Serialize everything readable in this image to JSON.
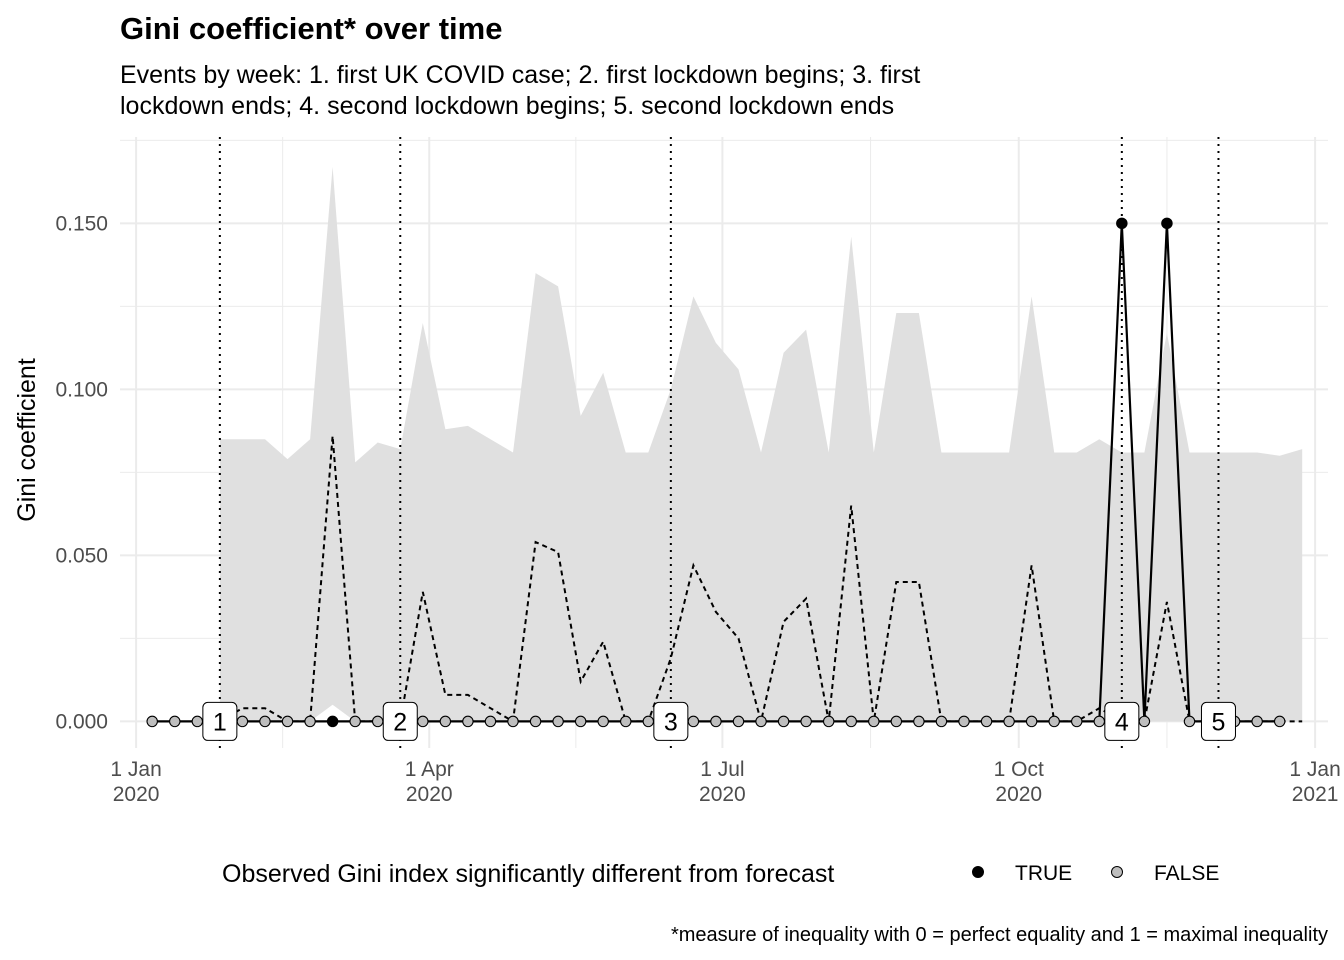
{
  "chart_data": {
    "type": "line",
    "title": "Gini coefficient* over time",
    "subtitle_lines": [
      "Events by week: 1. first UK COVID case; 2. first lockdown begins; 3. first",
      "lockdown ends; 4. second lockdown begins; 5. second lockdown ends"
    ],
    "ylabel": "Gini coefficient",
    "xlabel": "",
    "caption": "*measure of inequality with 0 = perfect equality and 1 = maximal inequality",
    "ylim": [
      -0.008,
      0.176
    ],
    "xlim": [
      "2019-12-27",
      "2021-01-05"
    ],
    "y_ticks": [
      0.0,
      0.05,
      0.1,
      0.15
    ],
    "y_tick_labels": [
      "0.000",
      "0.050",
      "0.100",
      "0.150"
    ],
    "x_ticks": [
      "2020-01-01",
      "2020-04-01",
      "2020-07-01",
      "2020-10-01",
      "2021-01-01"
    ],
    "x_tick_labels": [
      {
        "day": "1 Jan",
        "year": "2020"
      },
      {
        "day": "1 Apr",
        "year": "2020"
      },
      {
        "day": "1 Jul",
        "year": "2020"
      },
      {
        "day": "1 Oct",
        "year": "2020"
      },
      {
        "day": "1 Jan",
        "year": "2021"
      }
    ],
    "grid": true,
    "legend": {
      "title": "Observed Gini index significantly different from forecast",
      "position": "bottom",
      "entries": [
        {
          "label": "TRUE",
          "color": "#000000"
        },
        {
          "label": "FALSE",
          "color": "#bebebe"
        }
      ]
    },
    "colors": {
      "ribbon": "#e0e0e0",
      "grid": "#ebebeb",
      "line": "#000000",
      "point_true": "#000000",
      "point_false": "#bebebe"
    },
    "events": [
      {
        "label": "1",
        "date": "2020-01-27"
      },
      {
        "label": "2",
        "date": "2020-03-23"
      },
      {
        "label": "3",
        "date": "2020-06-15"
      },
      {
        "label": "4",
        "date": "2020-11-02"
      },
      {
        "label": "5",
        "date": "2020-12-02"
      }
    ],
    "observed": [
      {
        "date": "2020-01-06",
        "y": 0.0,
        "significant": false
      },
      {
        "date": "2020-01-13",
        "y": 0.0,
        "significant": false
      },
      {
        "date": "2020-01-20",
        "y": 0.0,
        "significant": false
      },
      {
        "date": "2020-01-27",
        "y": 0.0,
        "significant": false
      },
      {
        "date": "2020-02-03",
        "y": 0.0,
        "significant": false
      },
      {
        "date": "2020-02-10",
        "y": 0.0,
        "significant": false
      },
      {
        "date": "2020-02-17",
        "y": 0.0,
        "significant": false
      },
      {
        "date": "2020-02-24",
        "y": 0.0,
        "significant": false
      },
      {
        "date": "2020-03-02",
        "y": 0.0,
        "significant": true
      },
      {
        "date": "2020-03-09",
        "y": 0.0,
        "significant": false
      },
      {
        "date": "2020-03-16",
        "y": 0.0,
        "significant": false
      },
      {
        "date": "2020-03-23",
        "y": 0.0,
        "significant": false
      },
      {
        "date": "2020-03-30",
        "y": 0.0,
        "significant": false
      },
      {
        "date": "2020-04-06",
        "y": 0.0,
        "significant": false
      },
      {
        "date": "2020-04-13",
        "y": 0.0,
        "significant": false
      },
      {
        "date": "2020-04-20",
        "y": 0.0,
        "significant": false
      },
      {
        "date": "2020-04-27",
        "y": 0.0,
        "significant": false
      },
      {
        "date": "2020-05-04",
        "y": 0.0,
        "significant": false
      },
      {
        "date": "2020-05-11",
        "y": 0.0,
        "significant": false
      },
      {
        "date": "2020-05-18",
        "y": 0.0,
        "significant": false
      },
      {
        "date": "2020-05-25",
        "y": 0.0,
        "significant": false
      },
      {
        "date": "2020-06-01",
        "y": 0.0,
        "significant": false
      },
      {
        "date": "2020-06-08",
        "y": 0.0,
        "significant": false
      },
      {
        "date": "2020-06-15",
        "y": 0.0,
        "significant": false
      },
      {
        "date": "2020-06-22",
        "y": 0.0,
        "significant": false
      },
      {
        "date": "2020-06-29",
        "y": 0.0,
        "significant": false
      },
      {
        "date": "2020-07-06",
        "y": 0.0,
        "significant": false
      },
      {
        "date": "2020-07-13",
        "y": 0.0,
        "significant": false
      },
      {
        "date": "2020-07-20",
        "y": 0.0,
        "significant": false
      },
      {
        "date": "2020-07-27",
        "y": 0.0,
        "significant": false
      },
      {
        "date": "2020-08-03",
        "y": 0.0,
        "significant": false
      },
      {
        "date": "2020-08-10",
        "y": 0.0,
        "significant": false
      },
      {
        "date": "2020-08-17",
        "y": 0.0,
        "significant": false
      },
      {
        "date": "2020-08-24",
        "y": 0.0,
        "significant": false
      },
      {
        "date": "2020-08-31",
        "y": 0.0,
        "significant": false
      },
      {
        "date": "2020-09-07",
        "y": 0.0,
        "significant": false
      },
      {
        "date": "2020-09-14",
        "y": 0.0,
        "significant": false
      },
      {
        "date": "2020-09-21",
        "y": 0.0,
        "significant": false
      },
      {
        "date": "2020-09-28",
        "y": 0.0,
        "significant": false
      },
      {
        "date": "2020-10-05",
        "y": 0.0,
        "significant": false
      },
      {
        "date": "2020-10-12",
        "y": 0.0,
        "significant": false
      },
      {
        "date": "2020-10-19",
        "y": 0.0,
        "significant": false
      },
      {
        "date": "2020-10-26",
        "y": 0.0,
        "significant": false
      },
      {
        "date": "2020-11-02",
        "y": 0.15,
        "significant": true
      },
      {
        "date": "2020-11-09",
        "y": 0.0,
        "significant": false
      },
      {
        "date": "2020-11-16",
        "y": 0.15,
        "significant": true
      },
      {
        "date": "2020-11-23",
        "y": 0.0,
        "significant": false
      },
      {
        "date": "2020-11-30",
        "y": 0.0,
        "significant": false
      },
      {
        "date": "2020-12-07",
        "y": 0.0,
        "significant": false
      },
      {
        "date": "2020-12-14",
        "y": 0.0,
        "significant": false
      },
      {
        "date": "2020-12-21",
        "y": 0.0,
        "significant": false
      }
    ],
    "forecast": [
      {
        "date": "2020-01-27",
        "y": 0.0,
        "lower": 0.0,
        "upper": 0.085
      },
      {
        "date": "2020-02-03",
        "y": 0.004,
        "lower": 0.0,
        "upper": 0.085
      },
      {
        "date": "2020-02-10",
        "y": 0.004,
        "lower": 0.0,
        "upper": 0.085
      },
      {
        "date": "2020-02-17",
        "y": 0.0,
        "lower": 0.0,
        "upper": 0.079
      },
      {
        "date": "2020-02-24",
        "y": 0.0,
        "lower": 0.0,
        "upper": 0.085
      },
      {
        "date": "2020-03-02",
        "y": 0.086,
        "lower": 0.005,
        "upper": 0.167
      },
      {
        "date": "2020-03-09",
        "y": 0.0,
        "lower": 0.0,
        "upper": 0.078
      },
      {
        "date": "2020-03-16",
        "y": 0.0,
        "lower": 0.0,
        "upper": 0.084
      },
      {
        "date": "2020-03-23",
        "y": 0.0,
        "lower": 0.0,
        "upper": 0.082
      },
      {
        "date": "2020-03-30",
        "y": 0.039,
        "lower": 0.0,
        "upper": 0.12
      },
      {
        "date": "2020-04-06",
        "y": 0.008,
        "lower": 0.0,
        "upper": 0.088
      },
      {
        "date": "2020-04-13",
        "y": 0.008,
        "lower": 0.0,
        "upper": 0.089
      },
      {
        "date": "2020-04-20",
        "y": 0.004,
        "lower": 0.0,
        "upper": 0.085
      },
      {
        "date": "2020-04-27",
        "y": 0.0,
        "lower": 0.0,
        "upper": 0.081
      },
      {
        "date": "2020-05-04",
        "y": 0.054,
        "lower": 0.0,
        "upper": 0.135
      },
      {
        "date": "2020-05-11",
        "y": 0.051,
        "lower": 0.0,
        "upper": 0.131
      },
      {
        "date": "2020-05-18",
        "y": 0.012,
        "lower": 0.0,
        "upper": 0.092
      },
      {
        "date": "2020-05-25",
        "y": 0.024,
        "lower": 0.0,
        "upper": 0.105
      },
      {
        "date": "2020-06-01",
        "y": 0.0,
        "lower": 0.0,
        "upper": 0.081
      },
      {
        "date": "2020-06-08",
        "y": 0.0,
        "lower": 0.0,
        "upper": 0.081
      },
      {
        "date": "2020-06-15",
        "y": 0.019,
        "lower": 0.0,
        "upper": 0.1
      },
      {
        "date": "2020-06-22",
        "y": 0.047,
        "lower": 0.0,
        "upper": 0.128
      },
      {
        "date": "2020-06-29",
        "y": 0.033,
        "lower": 0.0,
        "upper": 0.114
      },
      {
        "date": "2020-07-06",
        "y": 0.025,
        "lower": 0.0,
        "upper": 0.106
      },
      {
        "date": "2020-07-13",
        "y": 0.0,
        "lower": 0.0,
        "upper": 0.081
      },
      {
        "date": "2020-07-20",
        "y": 0.03,
        "lower": 0.0,
        "upper": 0.111
      },
      {
        "date": "2020-07-27",
        "y": 0.037,
        "lower": 0.0,
        "upper": 0.118
      },
      {
        "date": "2020-08-03",
        "y": 0.0,
        "lower": 0.0,
        "upper": 0.081
      },
      {
        "date": "2020-08-10",
        "y": 0.065,
        "lower": 0.0,
        "upper": 0.146
      },
      {
        "date": "2020-08-17",
        "y": 0.0,
        "lower": 0.0,
        "upper": 0.081
      },
      {
        "date": "2020-08-24",
        "y": 0.042,
        "lower": 0.0,
        "upper": 0.123
      },
      {
        "date": "2020-08-31",
        "y": 0.042,
        "lower": 0.0,
        "upper": 0.123
      },
      {
        "date": "2020-09-07",
        "y": 0.0,
        "lower": 0.0,
        "upper": 0.081
      },
      {
        "date": "2020-09-14",
        "y": 0.0,
        "lower": 0.0,
        "upper": 0.081
      },
      {
        "date": "2020-09-21",
        "y": 0.0,
        "lower": 0.0,
        "upper": 0.081
      },
      {
        "date": "2020-09-28",
        "y": 0.0,
        "lower": 0.0,
        "upper": 0.081
      },
      {
        "date": "2020-10-05",
        "y": 0.047,
        "lower": 0.0,
        "upper": 0.128
      },
      {
        "date": "2020-10-12",
        "y": 0.0,
        "lower": 0.0,
        "upper": 0.081
      },
      {
        "date": "2020-10-19",
        "y": 0.0,
        "lower": 0.0,
        "upper": 0.081
      },
      {
        "date": "2020-10-26",
        "y": 0.004,
        "lower": 0.0,
        "upper": 0.085
      },
      {
        "date": "2020-11-02",
        "y": 0.0,
        "lower": 0.0,
        "upper": 0.081
      },
      {
        "date": "2020-11-09",
        "y": 0.0,
        "lower": 0.0,
        "upper": 0.081
      },
      {
        "date": "2020-11-16",
        "y": 0.036,
        "lower": 0.0,
        "upper": 0.117
      },
      {
        "date": "2020-11-23",
        "y": 0.0,
        "lower": 0.0,
        "upper": 0.081
      },
      {
        "date": "2020-11-30",
        "y": 0.0,
        "lower": 0.0,
        "upper": 0.081
      },
      {
        "date": "2020-12-07",
        "y": 0.0,
        "lower": 0.0,
        "upper": 0.081
      },
      {
        "date": "2020-12-14",
        "y": 0.0,
        "lower": 0.0,
        "upper": 0.081
      },
      {
        "date": "2020-12-21",
        "y": 0.0,
        "lower": 0.0,
        "upper": 0.08
      },
      {
        "date": "2020-12-28",
        "y": 0.0,
        "lower": 0.0,
        "upper": 0.082
      }
    ]
  }
}
